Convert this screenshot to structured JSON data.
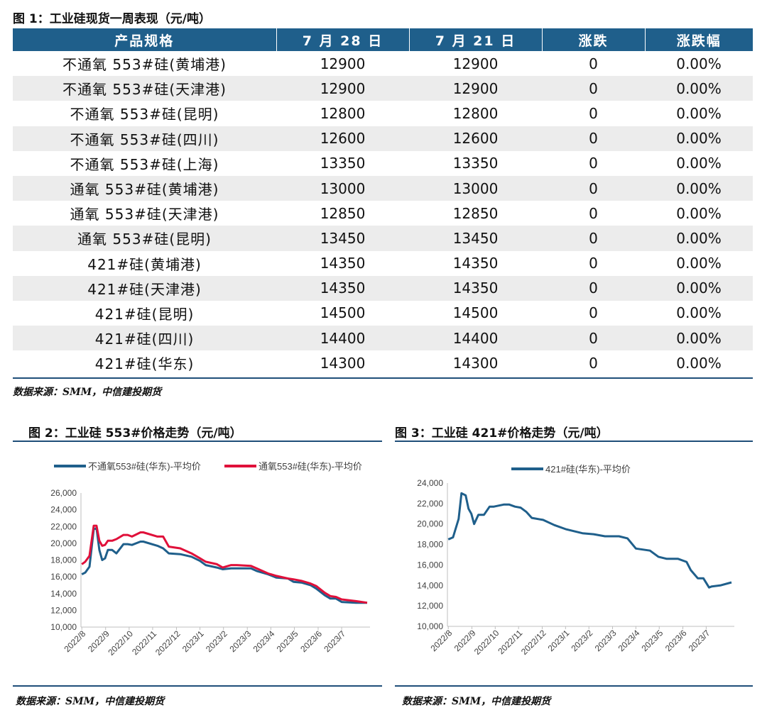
{
  "figure1": {
    "title": "图 1：工业硅现货一周表现（元/吨）",
    "headers": [
      "产品规格",
      "7 月 28 日",
      "7 月 21 日",
      "涨跌",
      "涨跌幅"
    ],
    "rows": [
      {
        "name": "不通氧 553#硅(黄埔港)",
        "cur": "12900",
        "prev": "12900",
        "chg": "0",
        "pct": "0.00%"
      },
      {
        "name": "不通氧 553#硅(天津港)",
        "cur": "12900",
        "prev": "12900",
        "chg": "0",
        "pct": "0.00%"
      },
      {
        "name": "不通氧 553#硅(昆明)",
        "cur": "12800",
        "prev": "12800",
        "chg": "0",
        "pct": "0.00%"
      },
      {
        "name": "不通氧 553#硅(四川)",
        "cur": "12600",
        "prev": "12600",
        "chg": "0",
        "pct": "0.00%"
      },
      {
        "name": "不通氧 553#硅(上海)",
        "cur": "13350",
        "prev": "13350",
        "chg": "0",
        "pct": "0.00%"
      },
      {
        "name": "通氧 553#硅(黄埔港)",
        "cur": "13000",
        "prev": "13000",
        "chg": "0",
        "pct": "0.00%"
      },
      {
        "name": "通氧 553#硅(天津港)",
        "cur": "12850",
        "prev": "12850",
        "chg": "0",
        "pct": "0.00%"
      },
      {
        "name": "通氧 553#硅(昆明)",
        "cur": "13450",
        "prev": "13450",
        "chg": "0",
        "pct": "0.00%"
      },
      {
        "name": "421#硅(黄埔港)",
        "cur": "14350",
        "prev": "14350",
        "chg": "0",
        "pct": "0.00%"
      },
      {
        "name": "421#硅(天津港)",
        "cur": "14350",
        "prev": "14350",
        "chg": "0",
        "pct": "0.00%"
      },
      {
        "name": "421#硅(昆明)",
        "cur": "14500",
        "prev": "14500",
        "chg": "0",
        "pct": "0.00%"
      },
      {
        "name": "421#硅(四川)",
        "cur": "14400",
        "prev": "14400",
        "chg": "0",
        "pct": "0.00%"
      },
      {
        "name": "421#硅(华东)",
        "cur": "14300",
        "prev": "14300",
        "chg": "0",
        "pct": "0.00%"
      }
    ],
    "source": "数据来源：SMM，中信建投期货"
  },
  "figure2": {
    "title": "图 2：工业硅 553#价格走势（元/吨）",
    "source": "数据来源：SMM，中信建投期货"
  },
  "figure3": {
    "title": "图 3：工业硅 421#价格走势（元/吨）",
    "source": "数据来源：SMM，中信建投期货"
  },
  "colors": {
    "header_bg": "#1f5f8b",
    "series_blue": "#1f5f8b",
    "series_red": "#e0103a",
    "rule": "#1f4e79"
  },
  "chart_data": [
    {
      "type": "line",
      "title": "",
      "xlabel": "",
      "ylabel": "",
      "ylim": [
        10000,
        26000
      ],
      "yticks": [
        10000,
        12000,
        14000,
        16000,
        18000,
        20000,
        22000,
        24000,
        26000
      ],
      "ytick_labels": [
        "10,000",
        "12,000",
        "14,000",
        "16,000",
        "18,000",
        "20,000",
        "22,000",
        "24,000",
        "26,000"
      ],
      "xlim": [
        2022.58,
        2023.6
      ],
      "xticks": [
        2022.583,
        2022.667,
        2022.75,
        2022.833,
        2022.917,
        2023.0,
        2023.083,
        2023.167,
        2023.25,
        2023.333,
        2023.417,
        2023.5
      ],
      "xtick_labels": [
        "2022/8",
        "2022/9",
        "2022/10",
        "2022/11",
        "2022/12",
        "2023/1",
        "2023/2",
        "2023/3",
        "2023/4",
        "2023/5",
        "2023/6",
        "2023/7"
      ],
      "legend": "top",
      "grid": false,
      "series": [
        {
          "name": "不通氧553#硅(华东)-平均价",
          "x": [
            2022.583,
            2022.595,
            2022.61,
            2022.625,
            2022.635,
            2022.645,
            2022.655,
            2022.665,
            2022.675,
            2022.69,
            2022.705,
            2022.73,
            2022.745,
            2022.76,
            2022.79,
            2022.8,
            2022.85,
            2022.87,
            2022.89,
            2022.93,
            2022.97,
            2023.0,
            2023.02,
            2023.06,
            2023.08,
            2023.11,
            2023.13,
            2023.18,
            2023.2,
            2023.24,
            2023.27,
            2023.31,
            2023.33,
            2023.36,
            2023.39,
            2023.41,
            2023.44,
            2023.46,
            2023.48,
            2023.5,
            2023.55,
            2023.59
          ],
          "y": [
            16300,
            16500,
            17200,
            21700,
            21800,
            19200,
            18000,
            18200,
            19200,
            19200,
            18800,
            19900,
            19900,
            19800,
            20200,
            20200,
            19700,
            19400,
            18800,
            18700,
            18400,
            17900,
            17400,
            17100,
            16900,
            17000,
            17000,
            17000,
            16700,
            16300,
            15900,
            15800,
            15400,
            15300,
            15000,
            14600,
            13800,
            13400,
            13400,
            13000,
            12900,
            12900
          ]
        },
        {
          "name": "通氧553#硅(华东)-平均价",
          "x": [
            2022.583,
            2022.595,
            2022.61,
            2022.625,
            2022.635,
            2022.645,
            2022.655,
            2022.665,
            2022.675,
            2022.69,
            2022.705,
            2022.73,
            2022.745,
            2022.76,
            2022.79,
            2022.8,
            2022.85,
            2022.87,
            2022.89,
            2022.93,
            2022.97,
            2023.0,
            2023.02,
            2023.06,
            2023.08,
            2023.11,
            2023.13,
            2023.18,
            2023.2,
            2023.24,
            2023.27,
            2023.31,
            2023.33,
            2023.36,
            2023.39,
            2023.41,
            2023.44,
            2023.46,
            2023.48,
            2023.5,
            2023.55,
            2023.59
          ],
          "y": [
            17500,
            17800,
            18500,
            22100,
            22100,
            20300,
            19700,
            19800,
            20300,
            20300,
            20500,
            21000,
            21000,
            20800,
            21300,
            21300,
            20800,
            20800,
            19600,
            19400,
            18800,
            18200,
            17800,
            17500,
            17100,
            17400,
            17400,
            17300,
            17000,
            16400,
            16100,
            15800,
            15700,
            15500,
            15200,
            14900,
            14100,
            13700,
            13600,
            13300,
            13100,
            12900
          ]
        }
      ]
    },
    {
      "type": "line",
      "title": "",
      "xlabel": "",
      "ylabel": "",
      "ylim": [
        10000,
        24000
      ],
      "yticks": [
        10000,
        12000,
        14000,
        16000,
        18000,
        20000,
        22000,
        24000
      ],
      "ytick_labels": [
        "10,000",
        "12,000",
        "14,000",
        "16,000",
        "18,000",
        "20,000",
        "22,000",
        "24,000"
      ],
      "xlim": [
        2022.58,
        2023.6
      ],
      "xticks": [
        2022.583,
        2022.667,
        2022.75,
        2022.833,
        2022.917,
        2023.0,
        2023.083,
        2023.167,
        2023.25,
        2023.333,
        2023.417,
        2023.5
      ],
      "xtick_labels": [
        "2022/8",
        "2022/9",
        "2022/10",
        "2022/11",
        "2022/12",
        "2023/1",
        "2023/2",
        "2023/3",
        "2023/4",
        "2023/5",
        "2023/6",
        "2023/7"
      ],
      "legend": "top",
      "grid": false,
      "series": [
        {
          "name": "421#硅(华东)-平均价",
          "x": [
            2022.583,
            2022.6,
            2022.62,
            2022.63,
            2022.645,
            2022.655,
            2022.665,
            2022.675,
            2022.69,
            2022.71,
            2022.73,
            2022.745,
            2022.78,
            2022.8,
            2022.82,
            2022.84,
            2022.86,
            2022.88,
            2022.92,
            2022.96,
            2023.0,
            2023.03,
            2023.06,
            2023.1,
            2023.14,
            2023.19,
            2023.22,
            2023.25,
            2023.3,
            2023.33,
            2023.36,
            2023.4,
            2023.43,
            2023.445,
            2023.47,
            2023.49,
            2023.51,
            2023.52,
            2023.55,
            2023.59
          ],
          "y": [
            18500,
            18700,
            20500,
            23000,
            22800,
            21500,
            21000,
            20000,
            20900,
            20900,
            21700,
            21700,
            21900,
            21900,
            21700,
            21600,
            21200,
            20600,
            20400,
            19900,
            19500,
            19300,
            19100,
            19000,
            18800,
            18800,
            18600,
            17600,
            17400,
            16800,
            16600,
            16600,
            16300,
            15500,
            14700,
            14700,
            13800,
            13900,
            14000,
            14300
          ]
        }
      ]
    }
  ]
}
